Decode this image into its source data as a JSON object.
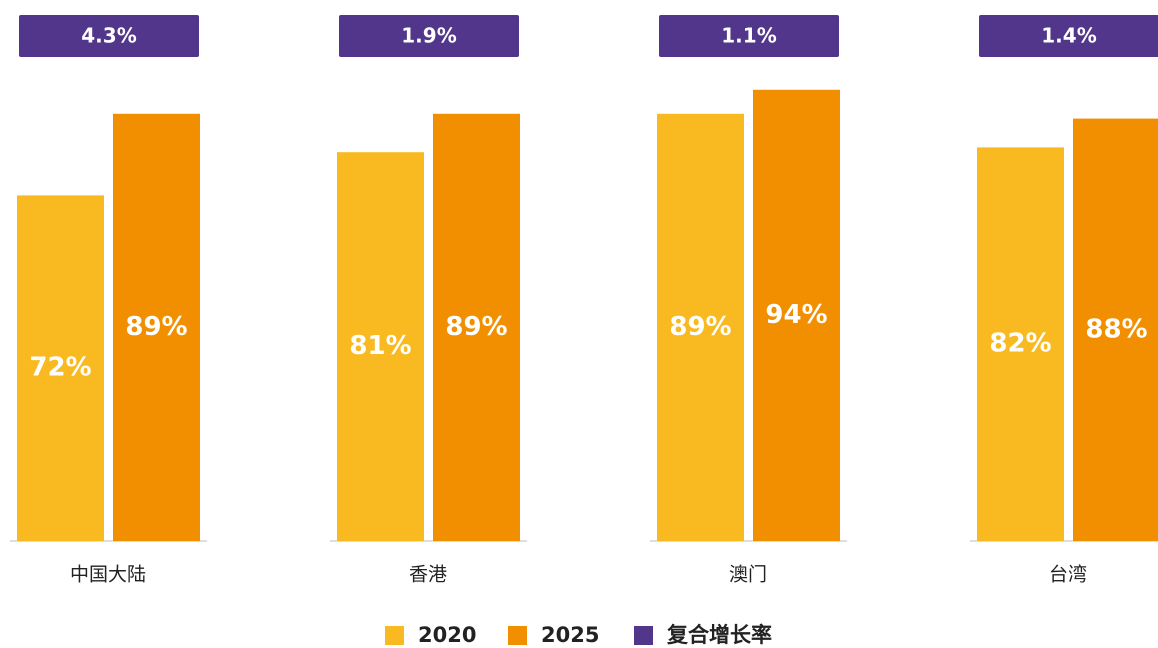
{
  "chart_data": {
    "type": "bar",
    "categories": [
      "中国大陆",
      "香港",
      "澳门",
      "台湾"
    ],
    "series": [
      {
        "name": "2020",
        "color": "#F9B920",
        "values": [
          72,
          81,
          89,
          82
        ],
        "value_labels": [
          "72%",
          "81%",
          "89%",
          "82%"
        ]
      },
      {
        "name": "2025",
        "color": "#F18F00",
        "values": [
          89,
          89,
          94,
          88
        ],
        "value_labels": [
          "89%",
          "89%",
          "94%",
          "88%"
        ]
      },
      {
        "name": "复合增长率",
        "color": "#52368C",
        "values": [
          4.3,
          1.9,
          1.1,
          1.4
        ],
        "value_labels": [
          "4.3%",
          "1.9%",
          "1.1%",
          "1.4%"
        ]
      }
    ],
    "ylim": [
      0,
      100
    ]
  }
}
